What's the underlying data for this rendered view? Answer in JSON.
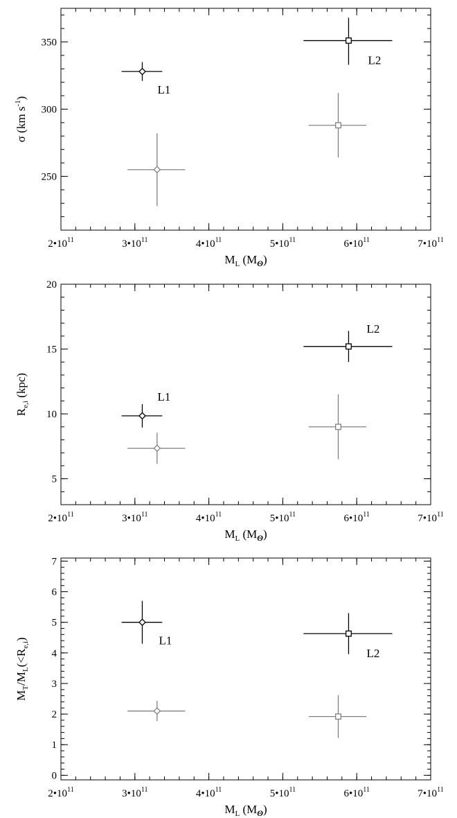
{
  "chart_data": [
    {
      "type": "scatter",
      "xlabel": "M",
      "xlabel_sub": "L",
      "xlabel_unit": " (M",
      "xlabel_unit_sub": "ʘ",
      "xlabel_close": ")",
      "ylabel": "σ (km s",
      "ylabel_sup": "-1",
      "ylabel_close": ")",
      "xlim": [
        200000000000.0,
        700000000000.0
      ],
      "ylim": [
        210,
        375
      ],
      "x_ticks": [
        200000000000.0,
        300000000000.0,
        400000000000.0,
        500000000000.0,
        600000000000.0,
        700000000000.0
      ],
      "x_tick_labels": [
        "2•10",
        "3•10",
        "4•10",
        "5•10",
        "6•10",
        "7•10"
      ],
      "x_tick_exp": "11",
      "y_ticks": [
        250,
        300,
        350
      ],
      "y_tick_labels": [
        "250",
        "300",
        "350"
      ],
      "y_minor_step": 10,
      "x_minor_step": 20000000000.0,
      "series": [
        {
          "color": "#000000",
          "points": [
            {
              "label": "L1",
              "marker": "diamond",
              "x": 310000000000.0,
              "y": 328,
              "xerr": [
                28000000000.0,
                27000000000.0
              ],
              "yerr": [
                7,
                7
              ]
            },
            {
              "label": "L2",
              "marker": "square",
              "x": 589000000000.0,
              "y": 351,
              "xerr": [
                61000000000.0,
                59000000000.0
              ],
              "yerr": [
                18,
                17
              ]
            }
          ]
        },
        {
          "color": "#808080",
          "points": [
            {
              "marker": "diamond",
              "x": 330000000000.0,
              "y": 255,
              "xerr": [
                40000000000.0,
                38000000000.0
              ],
              "yerr": [
                27,
                27
              ]
            },
            {
              "marker": "square",
              "x": 575000000000.0,
              "y": 288,
              "xerr": [
                40000000000.0,
                38000000000.0
              ],
              "yerr": [
                24,
                24
              ]
            }
          ]
        }
      ]
    },
    {
      "type": "scatter",
      "xlabel": "M",
      "xlabel_sub": "L",
      "xlabel_unit": " (M",
      "xlabel_unit_sub": "ʘ",
      "xlabel_close": ")",
      "ylabel": "R",
      "ylabel_sub": "e,i",
      "ylabel_close": " (kpc)",
      "xlim": [
        200000000000.0,
        700000000000.0
      ],
      "ylim": [
        3,
        20
      ],
      "x_ticks": [
        200000000000.0,
        300000000000.0,
        400000000000.0,
        500000000000.0,
        600000000000.0,
        700000000000.0
      ],
      "x_tick_labels": [
        "2•10",
        "3•10",
        "4•10",
        "5•10",
        "6•10",
        "7•10"
      ],
      "x_tick_exp": "11",
      "y_ticks": [
        5,
        10,
        15,
        20
      ],
      "y_tick_labels": [
        "5",
        "10",
        "15",
        "20"
      ],
      "y_minor_step": 1,
      "x_minor_step": 20000000000.0,
      "series": [
        {
          "color": "#000000",
          "points": [
            {
              "label": "L1",
              "marker": "diamond",
              "x": 310000000000.0,
              "y": 9.85,
              "xerr": [
                28000000000.0,
                27000000000.0
              ],
              "yerr": [
                0.9,
                0.9
              ]
            },
            {
              "label": "L2",
              "marker": "square",
              "x": 589000000000.0,
              "y": 15.2,
              "xerr": [
                61000000000.0,
                59000000000.0
              ],
              "yerr": [
                1.2,
                1.2
              ]
            }
          ]
        },
        {
          "color": "#808080",
          "points": [
            {
              "marker": "diamond",
              "x": 330000000000.0,
              "y": 7.35,
              "xerr": [
                40000000000.0,
                38000000000.0
              ],
              "yerr": [
                1.2,
                1.2
              ]
            },
            {
              "marker": "square",
              "x": 575000000000.0,
              "y": 9.0,
              "xerr": [
                40000000000.0,
                38000000000.0
              ],
              "yerr": [
                2.5,
                2.5
              ]
            }
          ]
        }
      ]
    },
    {
      "type": "scatter",
      "xlabel": "M",
      "xlabel_sub": "L",
      "xlabel_unit": " (M",
      "xlabel_unit_sub": "ʘ",
      "xlabel_close": ")",
      "ylabel": "M",
      "ylabel_sub": "T",
      "ylabel_mid": "/M",
      "ylabel_sub2": "L",
      "ylabel_mid2": "(<R",
      "ylabel_sub3": "e,i",
      "ylabel_close": ")",
      "xlim": [
        200000000000.0,
        700000000000.0
      ],
      "ylim": [
        -0.15,
        7.1
      ],
      "x_ticks": [
        200000000000.0,
        300000000000.0,
        400000000000.0,
        500000000000.0,
        600000000000.0,
        700000000000.0
      ],
      "x_tick_labels": [
        "2•10",
        "3•10",
        "4•10",
        "5•10",
        "6•10",
        "7•10"
      ],
      "x_tick_exp": "11",
      "y_ticks": [
        0,
        1,
        2,
        3,
        4,
        5,
        6,
        7
      ],
      "y_tick_labels": [
        "0",
        "1",
        "2",
        "3",
        "4",
        "5",
        "6",
        "7"
      ],
      "y_minor_step": 0.2,
      "x_minor_step": 20000000000.0,
      "series": [
        {
          "color": "#000000",
          "points": [
            {
              "label": "L1",
              "marker": "diamond",
              "x": 310000000000.0,
              "y": 5.0,
              "xerr": [
                28000000000.0,
                27000000000.0
              ],
              "yerr": [
                0.7,
                0.7
              ]
            },
            {
              "label": "L2",
              "marker": "square",
              "x": 589000000000.0,
              "y": 4.63,
              "xerr": [
                61000000000.0,
                59000000000.0
              ],
              "yerr": [
                0.67,
                0.67
              ]
            }
          ]
        },
        {
          "color": "#808080",
          "points": [
            {
              "marker": "diamond",
              "x": 330000000000.0,
              "y": 2.1,
              "xerr": [
                40000000000.0,
                38000000000.0
              ],
              "yerr": [
                0.33,
                0.33
              ]
            },
            {
              "marker": "square",
              "x": 575000000000.0,
              "y": 1.92,
              "xerr": [
                40000000000.0,
                38000000000.0
              ],
              "yerr": [
                0.7,
                0.7
              ]
            }
          ]
        }
      ]
    }
  ]
}
